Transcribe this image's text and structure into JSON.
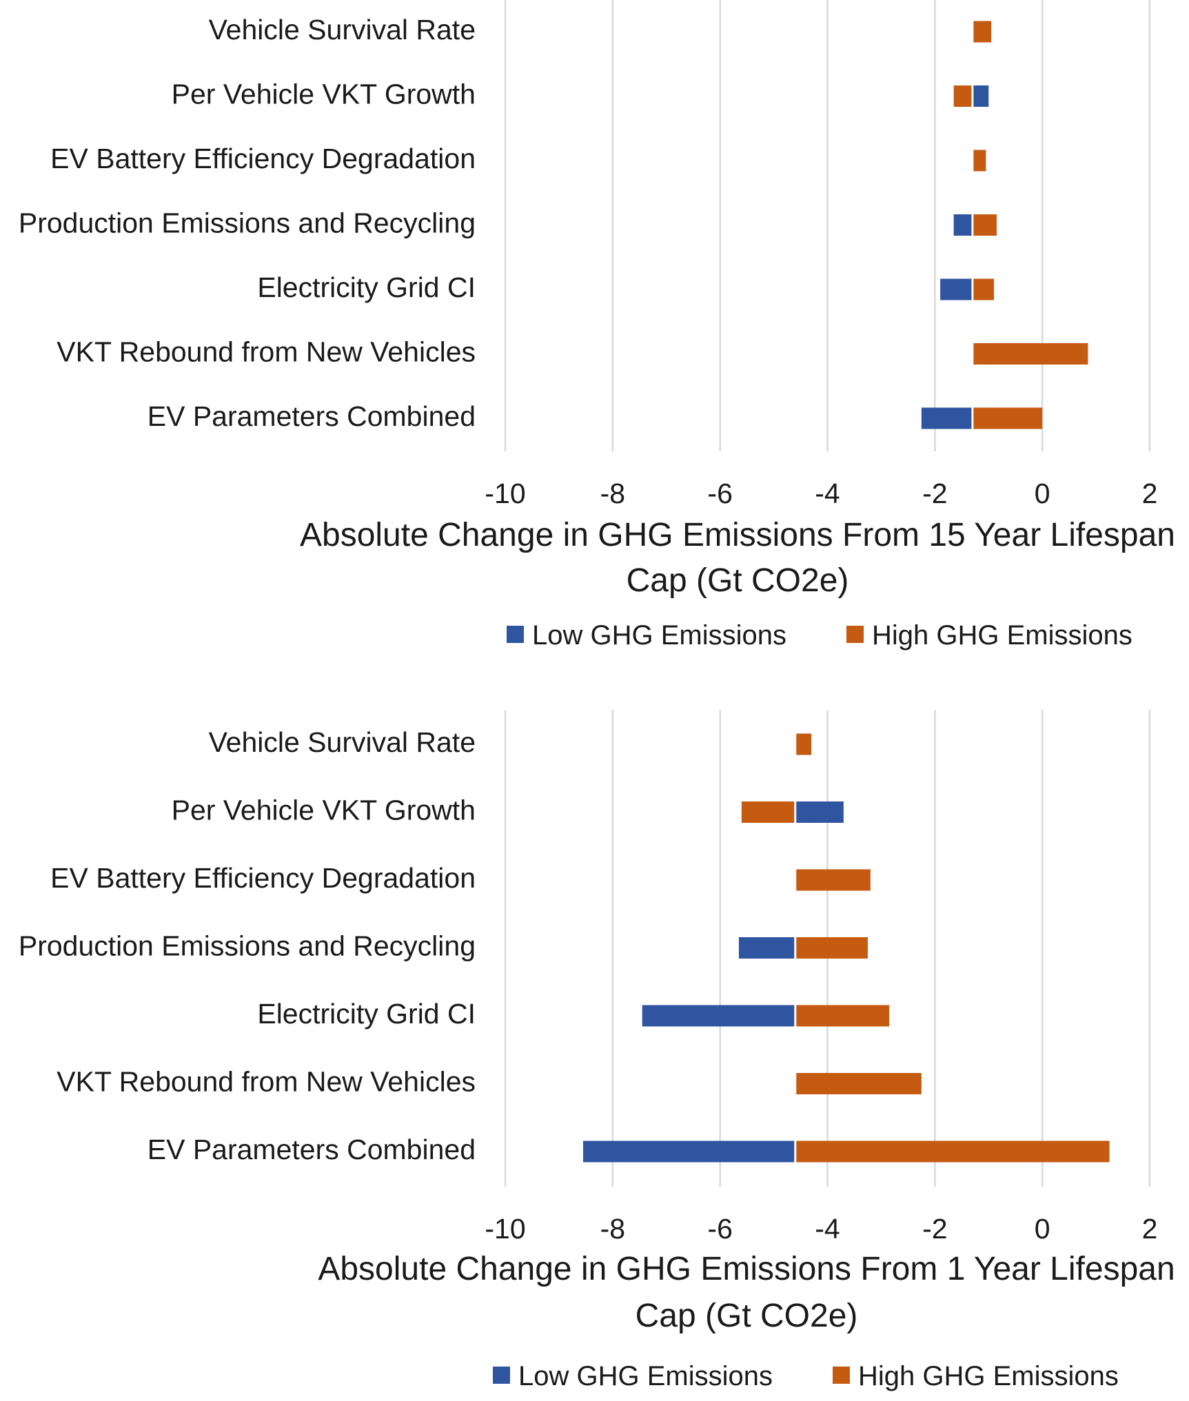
{
  "colors": {
    "low": "#2f55a0",
    "high": "#c55a11",
    "grid": "#d9d9d9",
    "text": "#1a1a1a"
  },
  "chart_data": [
    {
      "type": "bar",
      "orientation": "horizontal",
      "baseline": -1.3,
      "categories": [
        "Vehicle Survival Rate",
        "Per Vehicle VKT Growth",
        "EV Battery Efficiency Degradation",
        "Production Emissions and Recycling",
        "Electricity Grid CI",
        "VKT Rebound from New Vehicles",
        "EV Parameters Combined"
      ],
      "series": [
        {
          "name": "Low GHG Emissions",
          "color_key": "low",
          "values": [
            null,
            -1.0,
            null,
            -1.65,
            -1.9,
            null,
            -2.25
          ]
        },
        {
          "name": "High GHG Emissions",
          "color_key": "high",
          "values": [
            -0.95,
            -1.65,
            -1.05,
            -0.85,
            -0.9,
            0.85,
            0.0
          ]
        }
      ],
      "xlim": [
        -10,
        2
      ],
      "xticks": [
        "-10",
        "-8",
        "-6",
        "-4",
        "-2",
        "0",
        "2"
      ],
      "xlabel": [
        "Absolute Change in  GHG Emissions From 15 Year Lifespan",
        "Cap (Gt CO2e)"
      ],
      "legend": [
        "Low GHG Emissions",
        "High GHG Emissions"
      ],
      "grid": "vertical"
    },
    {
      "type": "bar",
      "orientation": "horizontal",
      "baseline": -4.6,
      "categories": [
        "Vehicle Survival Rate",
        "Per Vehicle VKT Growth",
        "EV Battery Efficiency Degradation",
        "Production Emissions and Recycling",
        "Electricity Grid CI",
        "VKT Rebound from New Vehicles",
        "EV Parameters Combined"
      ],
      "series": [
        {
          "name": "Low GHG Emissions",
          "color_key": "low",
          "values": [
            null,
            -3.7,
            null,
            -5.65,
            -7.45,
            null,
            -8.55
          ]
        },
        {
          "name": "High GHG Emissions",
          "color_key": "high",
          "values": [
            -4.3,
            -5.6,
            -3.2,
            -3.25,
            -2.85,
            -2.25,
            1.25
          ]
        }
      ],
      "xlim": [
        -10,
        2
      ],
      "xticks": [
        "-10",
        "-8",
        "-6",
        "-4",
        "-2",
        "0",
        "2"
      ],
      "xlabel": [
        "Absolute Change in  GHG Emissions From 1 Year Lifespan",
        "Cap (Gt CO2e)"
      ],
      "legend": [
        "Low GHG Emissions",
        "High GHG Emissions"
      ],
      "grid": "vertical"
    }
  ]
}
